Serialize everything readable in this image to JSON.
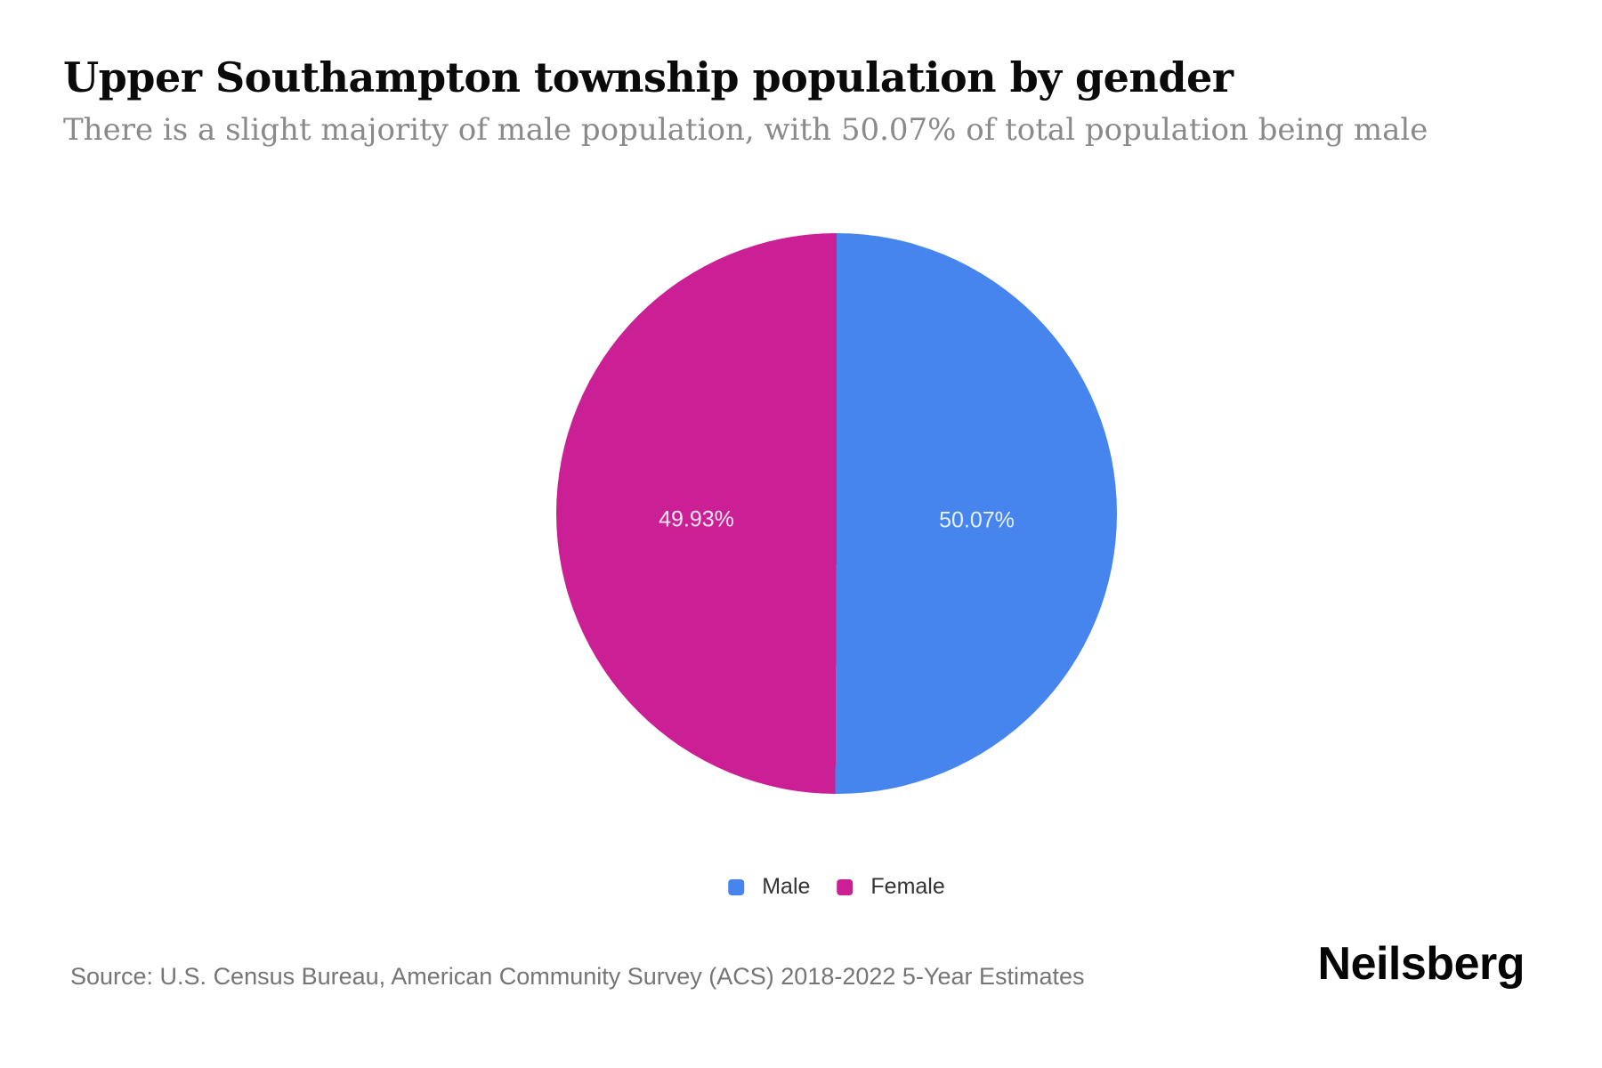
{
  "header": {
    "title": "Upper Southampton township population by gender",
    "subtitle": "There is a slight majority of male population, with 50.07% of total population being male"
  },
  "chart_data": {
    "type": "pie",
    "title": "Upper Southampton township population by gender",
    "start_angle_deg": 0,
    "direction": "clockwise",
    "legend_position": "bottom",
    "data_label_style": "percent-inside-white",
    "slices": [
      {
        "label": "Male",
        "value": 50.07,
        "display": "50.07%",
        "color": "#4684EE"
      },
      {
        "label": "Female",
        "value": 49.93,
        "display": "49.93%",
        "color": "#CB2095"
      }
    ]
  },
  "footer": {
    "source": "Source: U.S. Census Bureau, American Community Survey (ACS) 2018-2022 5-Year Estimates",
    "brand": "Neilsberg"
  }
}
